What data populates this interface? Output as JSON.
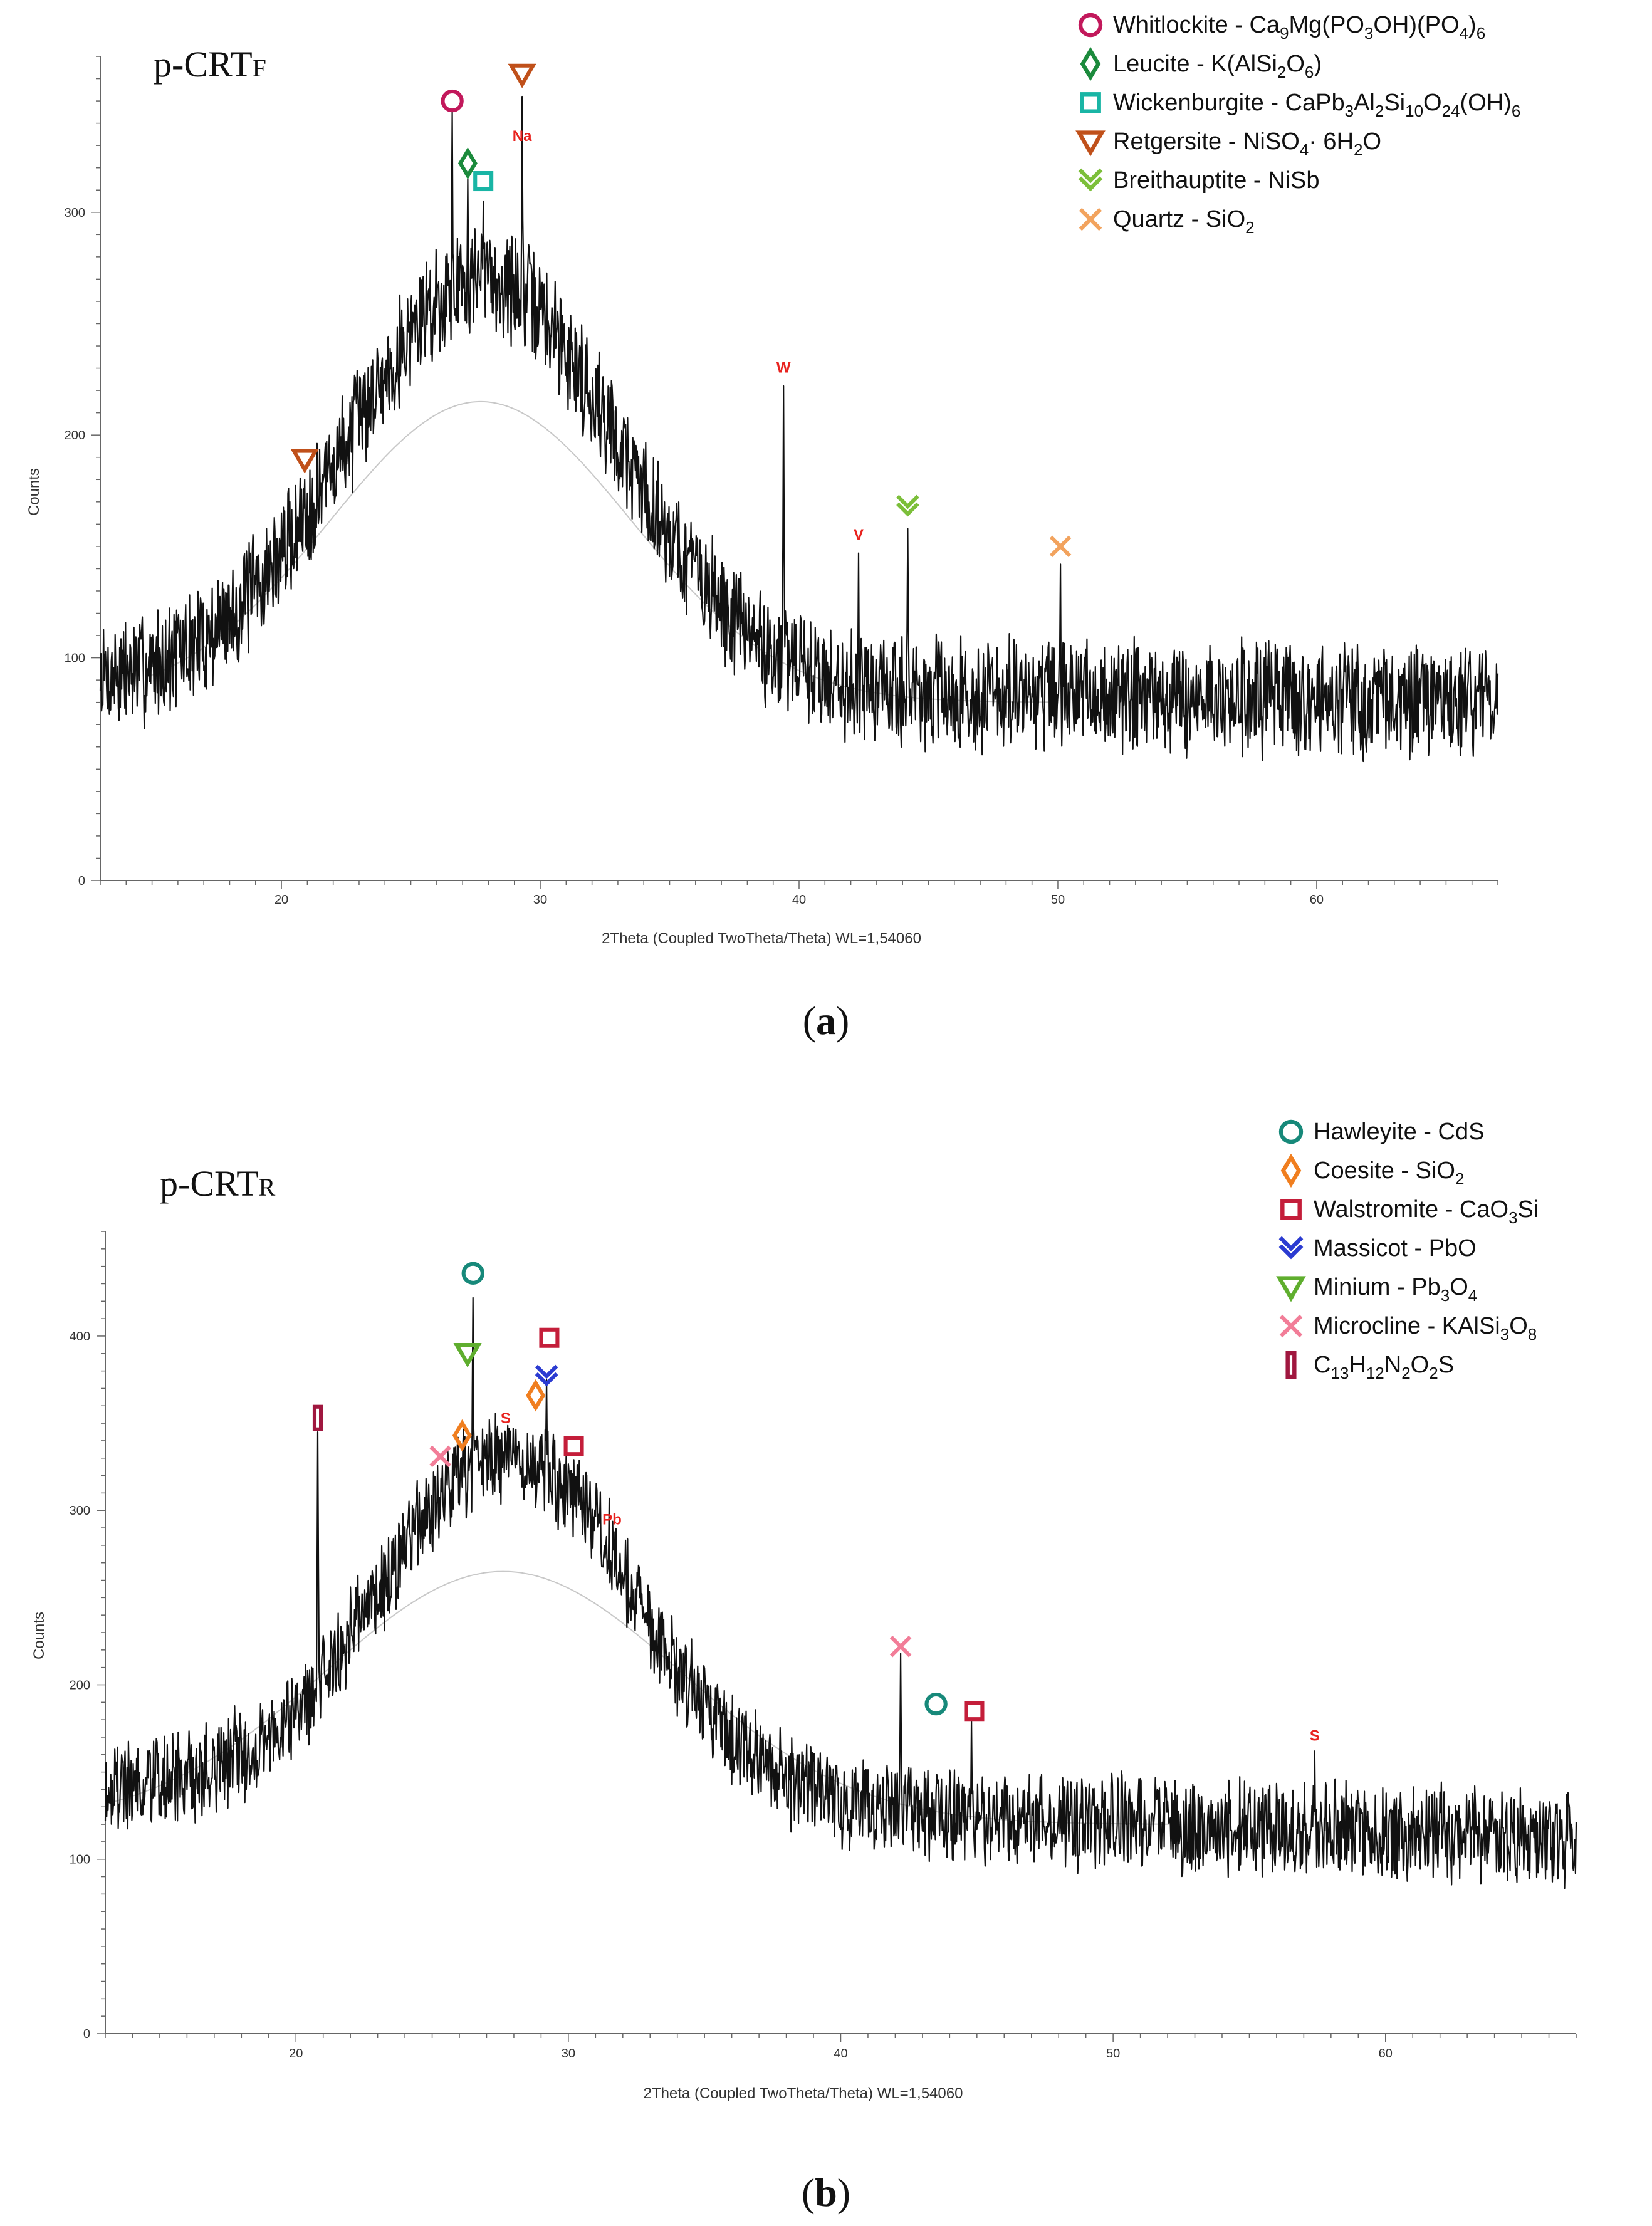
{
  "chart_data": [
    {
      "type": "line",
      "panel_label": "a",
      "title": "p-CRTF",
      "title_main": "p-CRT",
      "title_sub": "F",
      "xlabel": "2Theta (Coupled TwoTheta/Theta) WL=1,54060",
      "ylabel": "Counts",
      "xlim": [
        13,
        67
      ],
      "ylim": [
        0,
        370
      ],
      "xticks": [
        20,
        30,
        40,
        50,
        60
      ],
      "yticks": [
        0,
        100,
        200,
        300
      ],
      "baseline": {
        "center": 27.7,
        "peak": 215,
        "sigma": 5.8,
        "floor": 80
      },
      "background": {
        "center": 27.8,
        "amplitude": 185,
        "sigma": 5.2,
        "base": 88,
        "slope": -0.15,
        "noise": 22,
        "seed": 7
      },
      "peaks": [
        {
          "x": 20.9,
          "y": 180
        },
        {
          "x": 26.6,
          "y": 345
        },
        {
          "x": 27.2,
          "y": 315
        },
        {
          "x": 27.8,
          "y": 305
        },
        {
          "x": 29.3,
          "y": 352
        },
        {
          "x": 39.4,
          "y": 222
        },
        {
          "x": 42.3,
          "y": 147
        },
        {
          "x": 44.2,
          "y": 158
        },
        {
          "x": 50.1,
          "y": 142
        }
      ],
      "annotations": [
        {
          "text": "Na",
          "x": 29.3,
          "y": 332
        },
        {
          "text": "W",
          "x": 39.4,
          "y": 228
        },
        {
          "text": "V",
          "x": 42.3,
          "y": 153
        }
      ],
      "markers": [
        {
          "mineral": "Whitlockite",
          "x": 26.6,
          "y": 350
        },
        {
          "mineral": "Leucite",
          "x": 27.2,
          "y": 322
        },
        {
          "mineral": "Wickenburgite",
          "x": 27.8,
          "y": 314
        },
        {
          "mineral": "Retgersite",
          "x": 29.3,
          "y": 362
        },
        {
          "mineral": "Retgersite",
          "x": 20.9,
          "y": 189
        },
        {
          "mineral": "Breithauptite",
          "x": 44.2,
          "y": 168
        },
        {
          "mineral": "Quartz",
          "x": 50.1,
          "y": 150
        }
      ],
      "legend": [
        {
          "mineral": "Whitlockite",
          "symbol": "circle",
          "color": "#c2185b",
          "name": "Whitlockite - Ca",
          "formula_parts": [
            [
              "9",
              "sub"
            ],
            [
              "Mg(PO",
              ""
            ],
            [
              "3",
              "sub"
            ],
            [
              "OH)(PO",
              ""
            ],
            [
              "4",
              "sub"
            ],
            [
              ")",
              ""
            ],
            [
              "6",
              "sub"
            ]
          ]
        },
        {
          "mineral": "Leucite",
          "symbol": "diamond",
          "color": "#1b8a3c",
          "name": "Leucite - K(AlSi",
          "formula_parts": [
            [
              "2",
              "sub"
            ],
            [
              "O",
              ""
            ],
            [
              "6",
              "sub"
            ],
            [
              ")",
              ""
            ]
          ]
        },
        {
          "mineral": "Wickenburgite",
          "symbol": "square",
          "color": "#19b5a5",
          "name": "Wickenburgite - CaPb",
          "formula_parts": [
            [
              "3",
              "sub"
            ],
            [
              "Al",
              ""
            ],
            [
              "2",
              "sub"
            ],
            [
              "Si",
              ""
            ],
            [
              "10",
              "sub"
            ],
            [
              "O",
              ""
            ],
            [
              "24",
              "sub"
            ],
            [
              "(OH)",
              ""
            ],
            [
              "6",
              "sub"
            ]
          ]
        },
        {
          "mineral": "Retgersite",
          "symbol": "triangle-down",
          "color": "#c0501a",
          "name": "Retgersite - NiSO",
          "formula_parts": [
            [
              "4",
              "sub"
            ],
            [
              "· 6H",
              ""
            ],
            [
              "2",
              "sub"
            ],
            [
              "O",
              ""
            ]
          ]
        },
        {
          "mineral": "Breithauptite",
          "symbol": "chevron",
          "color": "#7cbf3a",
          "name": "Breithauptite - NiSb",
          "formula_parts": []
        },
        {
          "mineral": "Quartz",
          "symbol": "x",
          "color": "#f2a35e",
          "name": "Quartz - SiO",
          "formula_parts": [
            [
              "2",
              "sub"
            ]
          ]
        }
      ]
    },
    {
      "type": "line",
      "panel_label": "b",
      "title": "p-CRTR",
      "title_main": "p-CRT",
      "title_sub": "R",
      "xlabel": "2Theta (Coupled TwoTheta/Theta) WL=1,54060",
      "ylabel": "Counts",
      "xlim": [
        13,
        67
      ],
      "ylim": [
        0,
        460
      ],
      "xticks": [
        20,
        30,
        40,
        50,
        60
      ],
      "yticks": [
        0,
        100,
        200,
        300,
        400
      ],
      "baseline": {
        "center": 27.6,
        "peak": 265,
        "sigma": 6.5,
        "floor": 120
      },
      "background": {
        "center": 27.8,
        "amplitude": 198,
        "sigma": 4.7,
        "base": 140,
        "slope": -0.5,
        "noise": 24,
        "seed": 19
      },
      "peaks": [
        {
          "x": 20.8,
          "y": 345
        },
        {
          "x": 26.5,
          "y": 422
        },
        {
          "x": 27.7,
          "y": 345
        },
        {
          "x": 29.2,
          "y": 375
        },
        {
          "x": 30.1,
          "y": 323
        },
        {
          "x": 31.4,
          "y": 285
        },
        {
          "x": 42.2,
          "y": 218
        },
        {
          "x": 44.8,
          "y": 180
        },
        {
          "x": 57.4,
          "y": 162
        }
      ],
      "annotations": [
        {
          "text": "S",
          "x": 27.7,
          "y": 350
        },
        {
          "text": "Pb",
          "x": 31.6,
          "y": 292
        },
        {
          "text": "S",
          "x": 57.4,
          "y": 168
        }
      ],
      "markers": [
        {
          "mineral": "Hawleyite",
          "x": 26.5,
          "y": 436
        },
        {
          "mineral": "Minium",
          "x": 26.3,
          "y": 390
        },
        {
          "mineral": "Coesite",
          "x": 26.1,
          "y": 343
        },
        {
          "mineral": "Microcline",
          "x": 25.3,
          "y": 331
        },
        {
          "mineral": "C13H12N2O2S",
          "x": 20.8,
          "y": 353
        },
        {
          "mineral": "Walstromite",
          "x": 29.3,
          "y": 399
        },
        {
          "mineral": "Massicot",
          "x": 29.2,
          "y": 377
        },
        {
          "mineral": "Coesite",
          "x": 28.8,
          "y": 366
        },
        {
          "mineral": "Walstromite",
          "x": 30.2,
          "y": 337
        },
        {
          "mineral": "Microcline",
          "x": 42.2,
          "y": 222
        },
        {
          "mineral": "Hawleyite",
          "x": 43.5,
          "y": 189
        },
        {
          "mineral": "Walstromite",
          "x": 44.9,
          "y": 185
        }
      ],
      "legend": [
        {
          "mineral": "Hawleyite",
          "symbol": "circle",
          "color": "#17897a",
          "name": "Hawleyite - CdS",
          "formula_parts": []
        },
        {
          "mineral": "Coesite",
          "symbol": "diamond",
          "color": "#f07e1f",
          "name": "Coesite - SiO",
          "formula_parts": [
            [
              "2",
              "sub"
            ]
          ]
        },
        {
          "mineral": "Walstromite",
          "symbol": "square",
          "color": "#c41e3a",
          "name": "Walstromite - CaO",
          "formula_parts": [
            [
              "3",
              "sub"
            ],
            [
              "Si",
              ""
            ]
          ]
        },
        {
          "mineral": "Massicot",
          "symbol": "chevron",
          "color": "#2b3bd1",
          "name": "Massicot - PbO",
          "formula_parts": []
        },
        {
          "mineral": "Minium",
          "symbol": "triangle-down",
          "color": "#5fae2e",
          "name": "Minium - Pb",
          "formula_parts": [
            [
              "3",
              "sub"
            ],
            [
              "O",
              ""
            ],
            [
              "4",
              "sub"
            ]
          ]
        },
        {
          "mineral": "Microcline",
          "symbol": "x",
          "color": "#f27d98",
          "name": "Microcline - KAlSi",
          "formula_parts": [
            [
              "3",
              "sub"
            ],
            [
              "O",
              ""
            ],
            [
              "8",
              "sub"
            ]
          ]
        },
        {
          "mineral": "C13H12N2O2S",
          "symbol": "bar",
          "color": "#a0173f",
          "name": "C",
          "formula_parts": [
            [
              "13",
              "sub"
            ],
            [
              "H",
              ""
            ],
            [
              "12",
              "sub"
            ],
            [
              "N",
              ""
            ],
            [
              "2",
              "sub"
            ],
            [
              "O",
              ""
            ],
            [
              "2",
              "sub"
            ],
            [
              "S",
              ""
            ]
          ]
        }
      ]
    }
  ]
}
